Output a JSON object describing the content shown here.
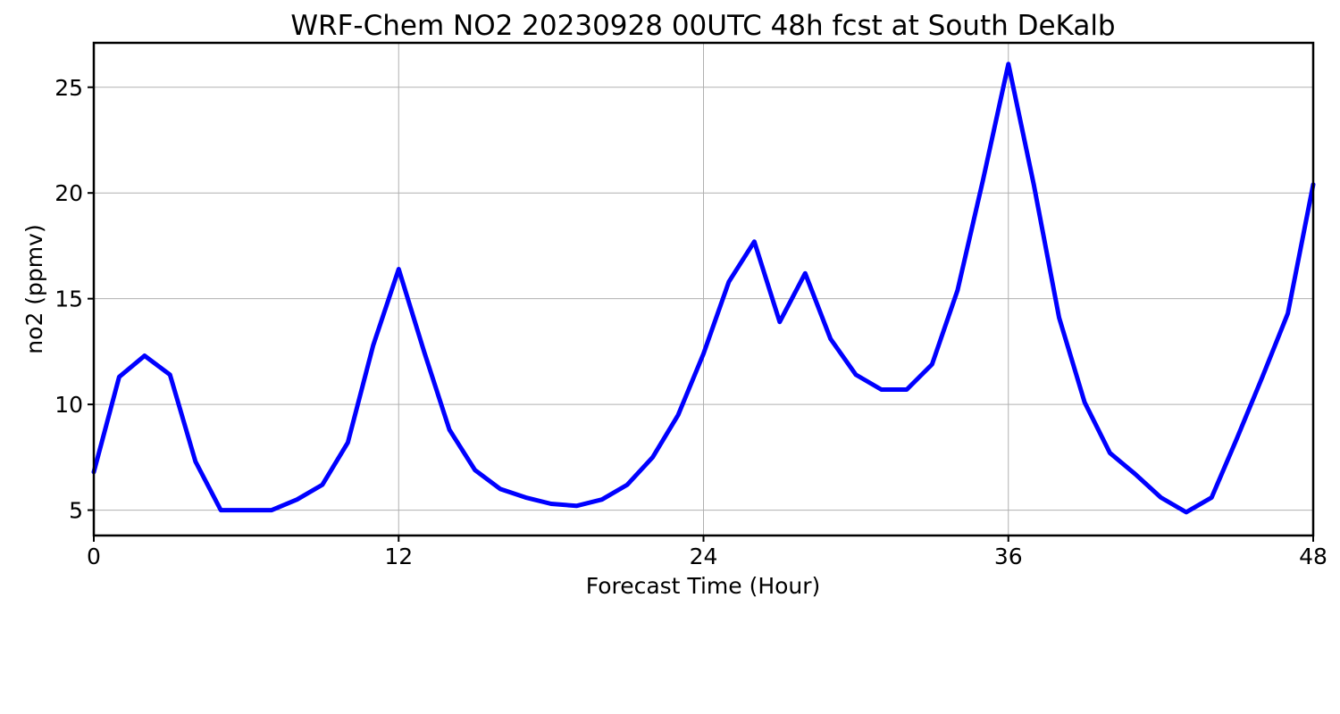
{
  "chart_data": {
    "type": "line",
    "title": "WRF-Chem NO2  20230928 00UTC 48h fcst at South DeKalb",
    "xlabel": "Forecast Time (Hour)",
    "ylabel": "no2  (ppmv)",
    "xlim": [
      0,
      48
    ],
    "ylim": [
      3.8,
      27.1
    ],
    "xticks": [
      0,
      12,
      24,
      36,
      48
    ],
    "yticks": [
      5,
      10,
      15,
      20,
      25
    ],
    "grid": true,
    "line_color": "#0000ff",
    "series": [
      {
        "x": [
          0,
          1,
          2,
          3,
          4,
          5,
          6,
          7,
          8,
          9,
          10,
          11,
          12,
          13,
          14,
          15,
          16,
          17,
          18,
          19,
          20,
          21,
          22,
          23,
          24,
          25,
          26,
          27,
          28,
          29,
          30,
          31,
          32,
          33,
          34,
          35,
          36,
          37,
          38,
          39,
          40,
          41,
          42,
          43,
          44,
          45,
          46,
          47,
          48
        ],
        "values": [
          6.8,
          11.3,
          12.3,
          11.4,
          7.3,
          5.0,
          5.0,
          5.0,
          5.5,
          6.2,
          8.2,
          12.8,
          16.4,
          12.5,
          8.8,
          6.9,
          6.0,
          5.6,
          5.3,
          5.2,
          5.5,
          6.2,
          7.5,
          9.5,
          12.4,
          15.8,
          17.7,
          13.9,
          16.2,
          13.1,
          11.4,
          10.7,
          10.7,
          11.9,
          15.4,
          20.6,
          26.1,
          20.4,
          14.1,
          10.1,
          7.7,
          6.7,
          5.6,
          4.9,
          5.6,
          8.4,
          11.3,
          14.3,
          20.4
        ]
      }
    ]
  }
}
